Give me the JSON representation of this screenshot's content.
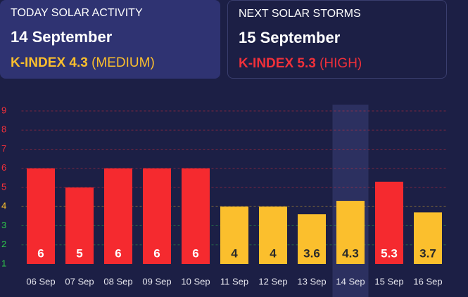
{
  "cards": [
    {
      "label": "TODAY SOLAR ACTIVITY",
      "date": "14 September",
      "index": "K-INDEX 4.3",
      "level": "(MEDIUM)",
      "color": "#fbbf2d"
    },
    {
      "label": "NEXT SOLAR STORMS",
      "date": "15 September",
      "index": "K-INDEX 5.3",
      "level": "(HIGH)",
      "color": "#f0303a"
    }
  ],
  "chart_data": {
    "type": "bar",
    "categories": [
      "06 Sep",
      "07 Sep",
      "08 Sep",
      "09 Sep",
      "10 Sep",
      "11 Sep",
      "12 Sep",
      "13 Sep",
      "14 Sep",
      "15 Sep",
      "16 Sep"
    ],
    "values": [
      6,
      5,
      6,
      6,
      6,
      4,
      4,
      3.6,
      4.3,
      5.3,
      3.7
    ],
    "colors": [
      "#f52a2f",
      "#f52a2f",
      "#f52a2f",
      "#f52a2f",
      "#f52a2f",
      "#fbbf2d",
      "#fbbf2d",
      "#fbbf2d",
      "#fbbf2d",
      "#f52a2f",
      "#fbbf2d"
    ],
    "ylim": [
      1,
      9
    ],
    "yticks": [
      1,
      2,
      3,
      4,
      5,
      6,
      7,
      8,
      9
    ],
    "ytick_colors": [
      "#2ec44a",
      "#2ec44a",
      "#2ec44a",
      "#fbbf2d",
      "#f0303a",
      "#f0303a",
      "#f0303a",
      "#f0303a",
      "#f0303a"
    ],
    "grid": true,
    "highlight_index": 8
  }
}
